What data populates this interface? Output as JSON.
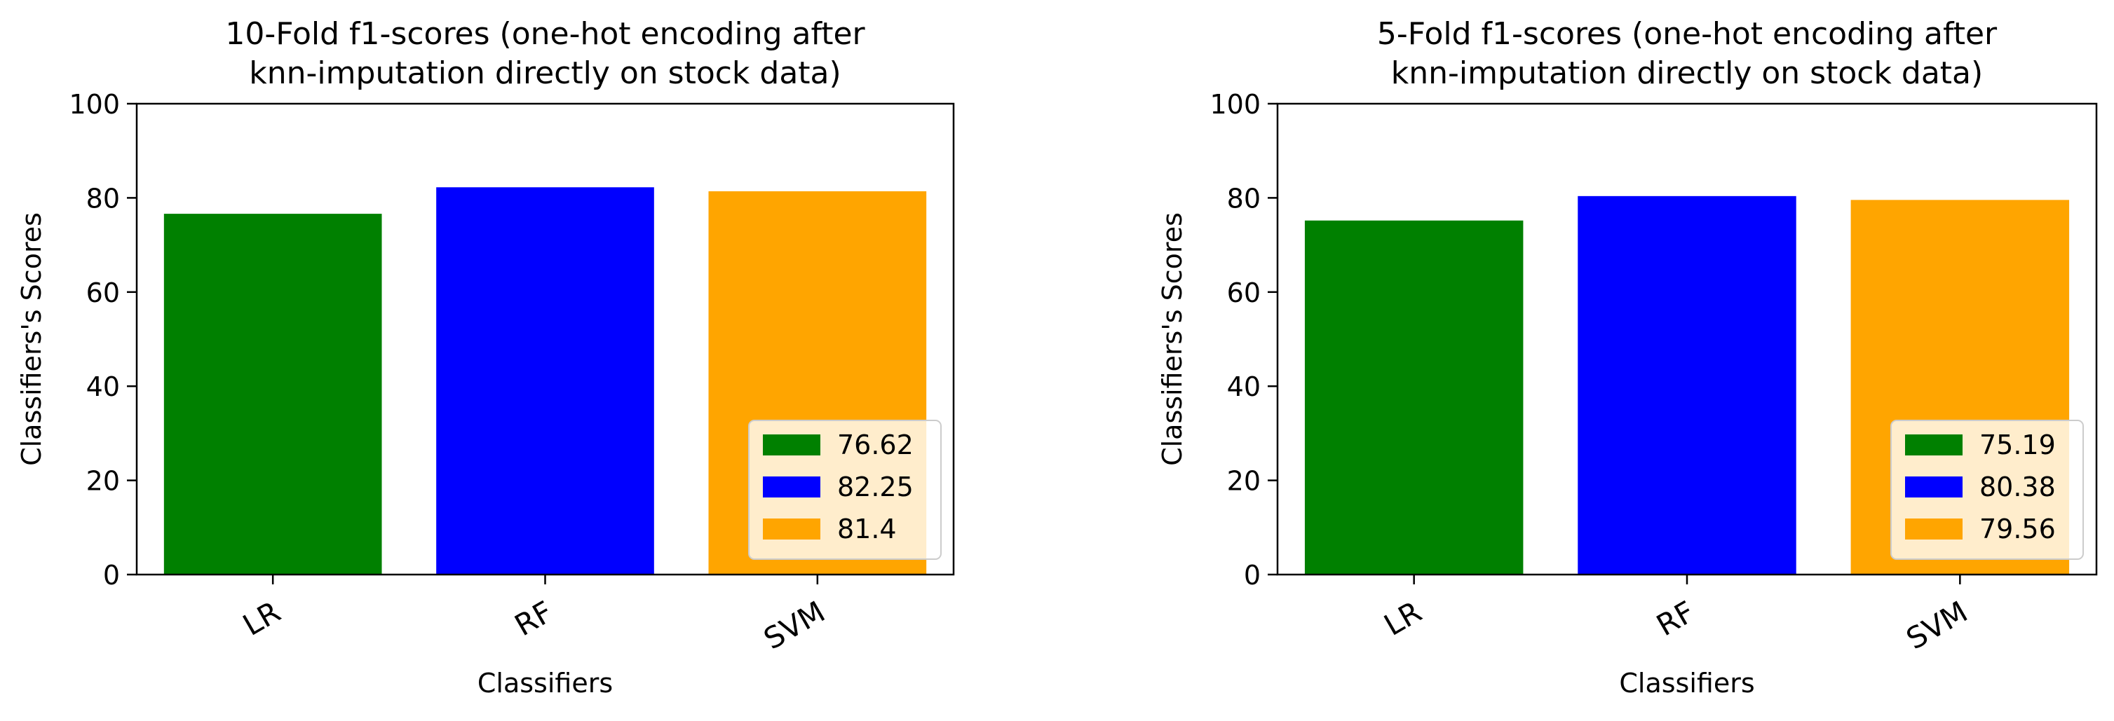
{
  "chart_data": [
    {
      "type": "bar",
      "title": "10-Fold f1-scores (one-hot encoding after\nknn-imputation directly on stock data)",
      "xlabel": "Classifiers",
      "ylabel": "Classifiers's Scores",
      "categories": [
        "LR",
        "RF",
        "SVM"
      ],
      "values": [
        76.62,
        82.25,
        81.4
      ],
      "colors": [
        "#008000",
        "#0000ff",
        "#ffa500"
      ],
      "ylim": [
        0,
        100
      ],
      "yticks": [
        0,
        20,
        40,
        60,
        80,
        100
      ],
      "grid": false,
      "legend": {
        "placement": "lower-right",
        "entries": [
          "76.62",
          "82.25",
          "81.4"
        ]
      }
    },
    {
      "type": "bar",
      "title": "5-Fold f1-scores (one-hot encoding after\nknn-imputation directly on stock data)",
      "xlabel": "Classifiers",
      "ylabel": "Classifiers's Scores",
      "categories": [
        "LR",
        "RF",
        "SVM"
      ],
      "values": [
        75.19,
        80.38,
        79.56
      ],
      "colors": [
        "#008000",
        "#0000ff",
        "#ffa500"
      ],
      "ylim": [
        0,
        100
      ],
      "yticks": [
        0,
        20,
        40,
        60,
        80,
        100
      ],
      "grid": false,
      "legend": {
        "placement": "lower-right",
        "entries": [
          "75.19",
          "80.38",
          "79.56"
        ]
      }
    }
  ]
}
